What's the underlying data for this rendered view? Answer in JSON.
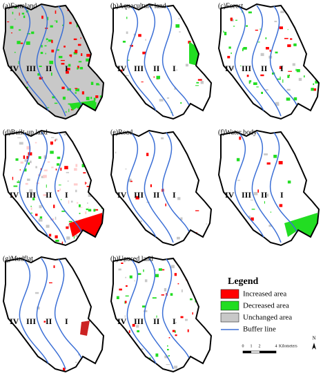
{
  "panels": [
    {
      "label": "(a)Farmland"
    },
    {
      "label": "(b)Aquaculture land"
    },
    {
      "label": "(c)Forest"
    },
    {
      "label": "(d)Built-up land"
    },
    {
      "label": "(e)Road"
    },
    {
      "label": "(f)Water body"
    },
    {
      "label": "(g)Mudflat"
    },
    {
      "label": "(h)Unused land"
    }
  ],
  "zone_labels": [
    "IV",
    "III",
    "II",
    "I"
  ],
  "legend": {
    "title": "Legend",
    "items": [
      "Increased area",
      "Decreased area",
      "Unchanged area",
      "Buffer line"
    ]
  },
  "scale_bar": {
    "ticks": [
      "0",
      "1",
      "2",
      "4"
    ],
    "unit": "Kilometers"
  },
  "north": "N"
}
